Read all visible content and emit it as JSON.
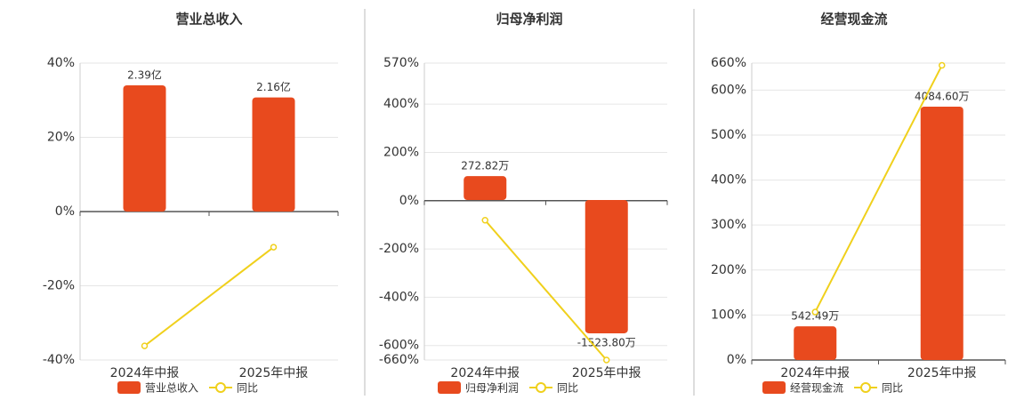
{
  "chart_data": [
    {
      "type": "bar",
      "title": "营业总收入",
      "categories": [
        "2024年中报",
        "2025年中报"
      ],
      "series": [
        {
          "name": "营业总收入",
          "color": "#e84a1e",
          "axis": "y2",
          "values": [
            2.39,
            2.16
          ],
          "value_labels": [
            "2.39亿",
            "2.16亿"
          ]
        },
        {
          "name": "同比",
          "type": "line",
          "color": "#f0d01c",
          "values": [
            -36.2,
            -9.6
          ]
        }
      ],
      "ylim": [
        -40,
        40
      ],
      "yticks": [
        {
          "value": 40,
          "label": "40%"
        },
        {
          "value": 20,
          "label": "20%"
        },
        {
          "value": 0,
          "label": "0%"
        },
        {
          "value": -20,
          "label": "-20%"
        },
        {
          "value": -40,
          "label": "-40%"
        }
      ],
      "y2lim": [
        -2.81,
        2.81
      ],
      "grid": true
    },
    {
      "type": "bar",
      "title": "归母净利润",
      "categories": [
        "2024年中报",
        "2025年中报"
      ],
      "series": [
        {
          "name": "归母净利润",
          "color": "#e84a1e",
          "axis": "y2",
          "values": [
            272.82,
            -1523.8
          ],
          "value_labels": [
            "272.82万",
            "-1523.80万"
          ]
        },
        {
          "name": "同比",
          "type": "line",
          "color": "#f0d01c",
          "values": [
            -81,
            -660
          ]
        }
      ],
      "ylim": [
        -660,
        570
      ],
      "yticks": [
        {
          "value": 570,
          "label": "570%"
        },
        {
          "value": 400,
          "label": "400%"
        },
        {
          "value": 200,
          "label": "200%"
        },
        {
          "value": 0,
          "label": "0%"
        },
        {
          "value": -200,
          "label": "-200%"
        },
        {
          "value": -400,
          "label": "-400%"
        },
        {
          "value": -600,
          "label": "-600%"
        },
        {
          "value": -660,
          "label": "-660%"
        }
      ],
      "y2lim": [
        -1829,
        1565
      ],
      "grid": true
    },
    {
      "type": "bar",
      "title": "经营现金流",
      "categories": [
        "2024年中报",
        "2025年中报"
      ],
      "series": [
        {
          "name": "经营现金流",
          "color": "#e84a1e",
          "axis": "y2",
          "values": [
            542.49,
            4084.6
          ],
          "value_labels": [
            "542.49万",
            "4084.60万"
          ]
        },
        {
          "name": "同比",
          "type": "line",
          "color": "#f0d01c",
          "values": [
            106.6,
            655
          ]
        }
      ],
      "ylim": [
        0,
        660
      ],
      "yticks": [
        {
          "value": 660,
          "label": "660%"
        },
        {
          "value": 600,
          "label": "600%"
        },
        {
          "value": 500,
          "label": "500%"
        },
        {
          "value": 400,
          "label": "400%"
        },
        {
          "value": 300,
          "label": "300%"
        },
        {
          "value": 200,
          "label": "200%"
        },
        {
          "value": 100,
          "label": "100%"
        },
        {
          "value": 0,
          "label": "0%"
        }
      ],
      "y2lim": [
        0,
        4787
      ],
      "grid": true
    }
  ]
}
